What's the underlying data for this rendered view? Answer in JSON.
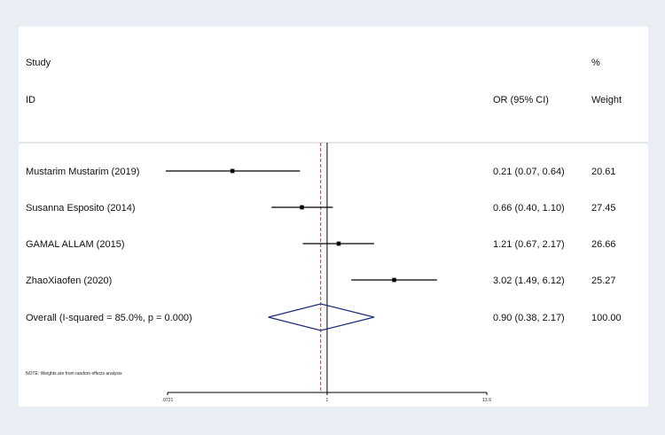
{
  "chart_data": {
    "type": "forest",
    "header": {
      "study_line1": "Study",
      "study_line2": "ID",
      "effect_label": "OR (95% CI)",
      "weight_line1": "%",
      "weight_line2": "Weight"
    },
    "studies": [
      {
        "id": "Mustarim Mustarim (2019)",
        "or": 0.21,
        "ci": [
          0.07,
          0.64
        ],
        "or_text": "0.21 (0.07, 0.64)",
        "weight": "20.61"
      },
      {
        "id": "Susanna Esposito (2014)",
        "or": 0.66,
        "ci": [
          0.4,
          1.1
        ],
        "or_text": "0.66 (0.40, 1.10)",
        "weight": "27.45"
      },
      {
        "id": "GAMAL ALLAM  (2015)",
        "or": 1.21,
        "ci": [
          0.67,
          2.17
        ],
        "or_text": "1.21 (0.67, 2.17)",
        "weight": "26.66"
      },
      {
        "id": "ZhaoXiaofen  (2020)",
        "or": 3.02,
        "ci": [
          1.49,
          6.12
        ],
        "or_text": "3.02 (1.49, 6.12)",
        "weight": "25.27"
      }
    ],
    "overall": {
      "label": "Overall  (I-squared = 85.0%, p = 0.000)",
      "or": 0.9,
      "ci": [
        0.38,
        2.17
      ],
      "or_text": "0.90 (0.38, 2.17)",
      "weight": "100.00"
    },
    "note": "NOTE: Weights are from random effects analysis",
    "x_scale": "log",
    "xlim": [
      0.0721,
      13.9
    ],
    "ticks": [
      {
        "value": 0.0721,
        "label": ".0721"
      },
      {
        "value": 1,
        "label": "1"
      },
      {
        "value": 13.9,
        "label": "13.9"
      }
    ],
    "null_line": 1,
    "colors": {
      "ci_line": "#000000",
      "point": "#000000",
      "diamond": "#1f2a7a",
      "null_line": "#000000",
      "overall_line": "#c0392b",
      "separator": "#c8ccd0"
    }
  }
}
